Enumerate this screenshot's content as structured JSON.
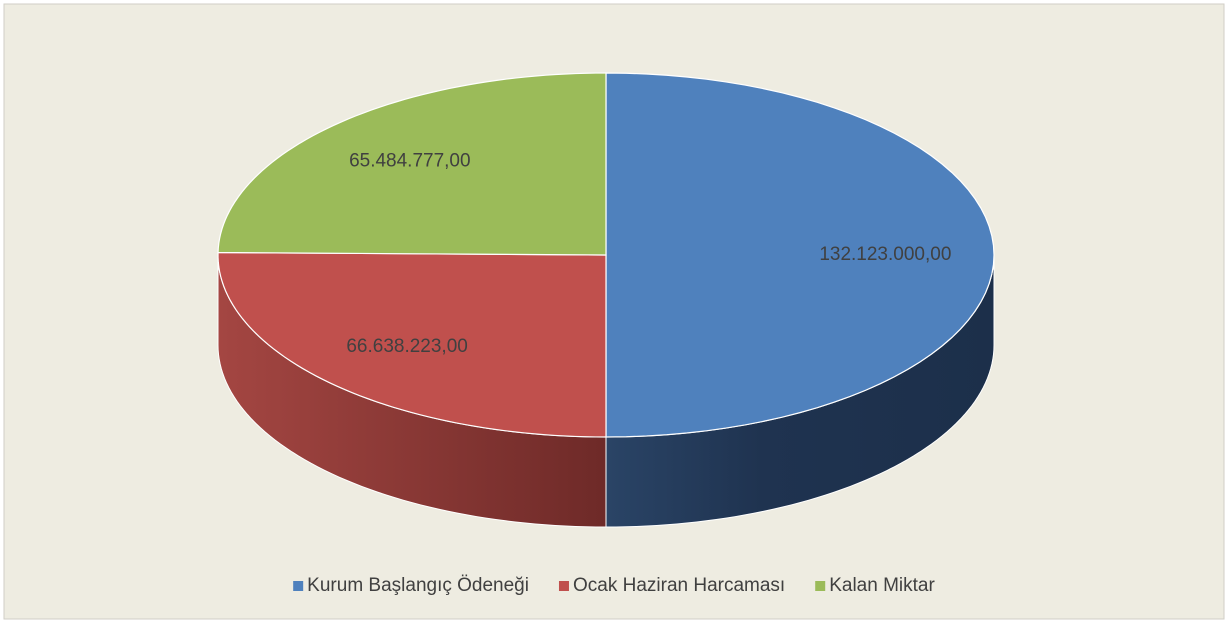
{
  "chart_data": {
    "type": "pie",
    "categories": [
      "Kurum Başlangıç Ödeneği",
      "Ocak Haziran Harcaması",
      "Kalan Miktar"
    ],
    "values": [
      132123000,
      66638223,
      65484777
    ],
    "value_labels": [
      "132.123.000,00",
      "66.638.223,00",
      "65.484.777,00"
    ],
    "colors": [
      "#4f81bd",
      "#c0504d",
      "#9bbb59"
    ],
    "legend": "bottom"
  }
}
